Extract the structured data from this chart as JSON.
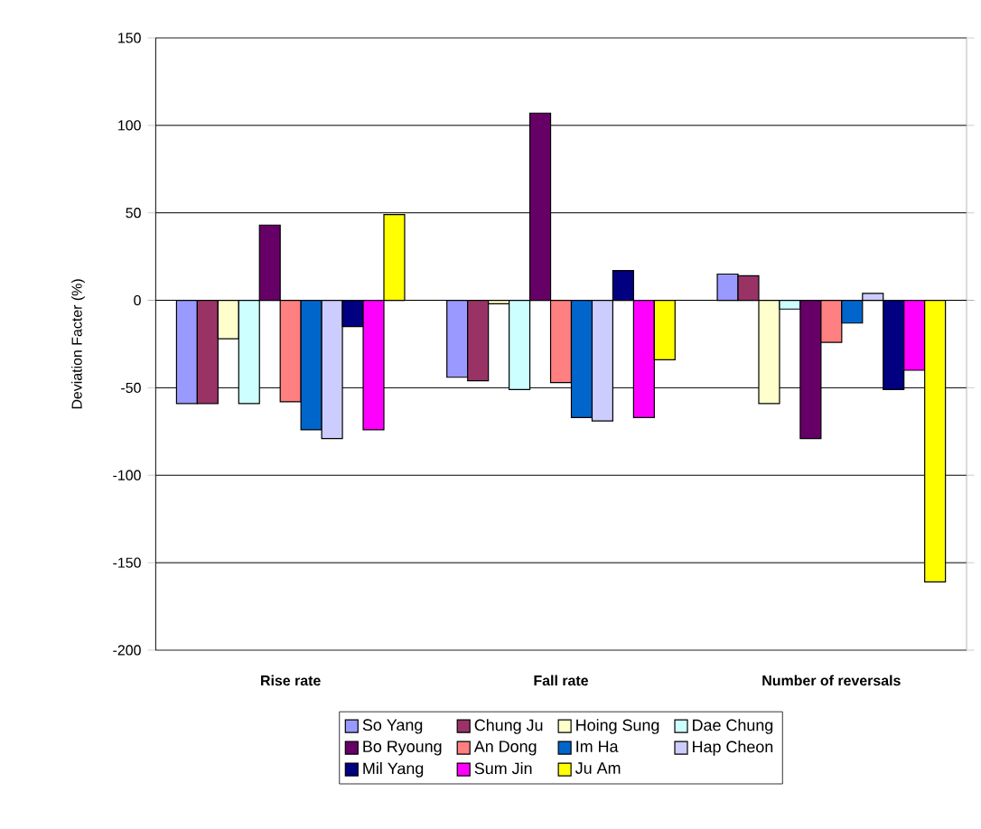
{
  "chart_data": {
    "type": "bar",
    "ylabel": "Deviation Facter (%)",
    "categories": [
      "Rise rate",
      "Fall rate",
      "Number of reversals"
    ],
    "ylim": [
      -200,
      150
    ],
    "yticks": [
      -200,
      -150,
      -100,
      -50,
      0,
      50,
      100,
      150
    ],
    "grid": "y",
    "legend": "bottom",
    "series": [
      {
        "name": "So Yang",
        "color": "#9999ff",
        "values": [
          -59,
          -44,
          15
        ]
      },
      {
        "name": "Chung Ju",
        "color": "#993366",
        "values": [
          -59,
          -46,
          14
        ]
      },
      {
        "name": "Hoing Sung",
        "color": "#ffffcc",
        "values": [
          -22,
          -2,
          -59
        ]
      },
      {
        "name": "Dae Chung",
        "color": "#ccffff",
        "values": [
          -59,
          -51,
          -5
        ]
      },
      {
        "name": "Bo Ryoung",
        "color": "#660066",
        "values": [
          43,
          107,
          -79
        ]
      },
      {
        "name": "An Dong",
        "color": "#ff8080",
        "values": [
          -58,
          -47,
          -24
        ]
      },
      {
        "name": "Im Ha",
        "color": "#0066cc",
        "values": [
          -74,
          -67,
          -13
        ]
      },
      {
        "name": "Hap Cheon",
        "color": "#ccccff",
        "values": [
          -79,
          -69,
          4
        ]
      },
      {
        "name": "Mil Yang",
        "color": "#000080",
        "values": [
          -15,
          17,
          -51
        ]
      },
      {
        "name": "Sum Jin",
        "color": "#ff00ff",
        "values": [
          -74,
          -67,
          -40
        ]
      },
      {
        "name": "Ju Am",
        "color": "#ffff00",
        "values": [
          49,
          -34,
          -161
        ]
      }
    ]
  }
}
